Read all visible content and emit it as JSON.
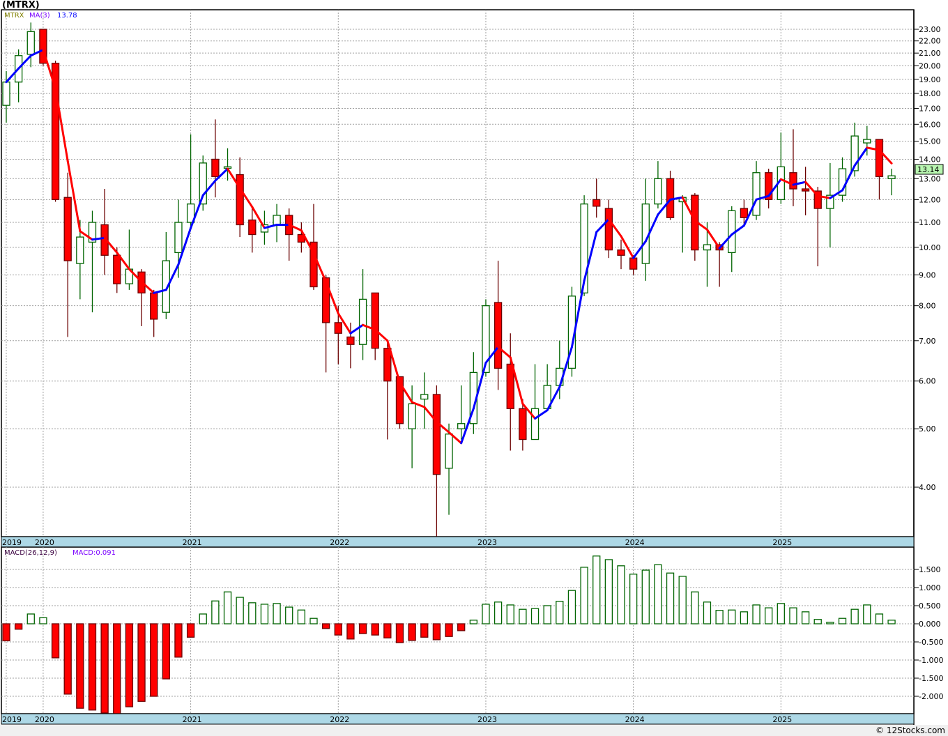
{
  "title": "(MTRX)",
  "price_legend": {
    "symbol": "MTRX",
    "ma_label": "MA(3)",
    "ma_value": "13.78"
  },
  "macd_legend": {
    "label": "MACD(26,12,9)",
    "value": "MACD:0.091"
  },
  "last_price_label": "13.14",
  "footer": "© 12Stocks.com",
  "colors": {
    "bull": "#006400",
    "bear_fill": "#ff0000",
    "bear_edge": "#6b0000",
    "ma_up": "#0000ff",
    "ma_down": "#ff0000",
    "axis_band": "#add8e6",
    "price_box": "#b8f5b0"
  },
  "chart_data": [
    {
      "type": "candlestick",
      "title": "MTRX monthly",
      "scale": "log",
      "ylim": [
        3.3,
        24
      ],
      "y_ticks": [
        "23.00",
        "22.00",
        "21.00",
        "20.00",
        "19.00",
        "18.00",
        "17.00",
        "16.00",
        "15.00",
        "14.00",
        "13.00",
        "12.00",
        "11.00",
        "10.00",
        "9.00",
        "8.00",
        "7.00",
        "6.00",
        "5.00",
        "4.00"
      ],
      "x_tick_labels": [
        {
          "label": "2019",
          "index": 0
        },
        {
          "label": "2020",
          "index": 3
        },
        {
          "label": "2021",
          "index": 15
        },
        {
          "label": "2022",
          "index": 27
        },
        {
          "label": "2023",
          "index": 39
        },
        {
          "label": "2024",
          "index": 51
        },
        {
          "label": "2025",
          "index": 63
        }
      ],
      "ma_period": 3,
      "ohlc": [
        [
          17.2,
          19.6,
          16.1,
          18.8
        ],
        [
          18.8,
          21.3,
          17.4,
          20.8
        ],
        [
          20.9,
          23.6,
          19.9,
          22.8
        ],
        [
          23.0,
          23.0,
          20.0,
          20.2
        ],
        [
          20.2,
          20.4,
          11.9,
          12.0
        ],
        [
          12.1,
          13.3,
          7.1,
          9.5
        ],
        [
          9.4,
          11.1,
          8.2,
          10.4
        ],
        [
          10.2,
          11.5,
          7.8,
          11.0
        ],
        [
          10.9,
          12.5,
          9.0,
          9.7
        ],
        [
          9.7,
          10.0,
          8.4,
          8.7
        ],
        [
          8.7,
          10.7,
          8.5,
          9.2
        ],
        [
          9.1,
          9.2,
          7.4,
          8.4
        ],
        [
          8.4,
          8.5,
          7.1,
          7.6
        ],
        [
          7.8,
          10.6,
          7.6,
          9.5
        ],
        [
          9.8,
          12.0,
          8.9,
          11.0
        ],
        [
          11.0,
          15.4,
          10.7,
          11.8
        ],
        [
          11.8,
          14.2,
          11.5,
          13.8
        ],
        [
          14.0,
          16.3,
          12.1,
          13.1
        ],
        [
          13.6,
          14.6,
          12.9,
          13.6
        ],
        [
          13.2,
          14.1,
          10.4,
          10.9
        ],
        [
          11.1,
          11.7,
          9.8,
          10.5
        ],
        [
          10.6,
          11.5,
          10.1,
          10.9
        ],
        [
          10.9,
          11.8,
          10.2,
          11.3
        ],
        [
          11.3,
          11.6,
          9.5,
          10.5
        ],
        [
          10.5,
          11.0,
          9.8,
          10.2
        ],
        [
          10.2,
          11.8,
          8.5,
          8.6
        ],
        [
          8.9,
          9.0,
          6.2,
          7.5
        ],
        [
          7.5,
          8.0,
          6.4,
          7.2
        ],
        [
          7.1,
          7.5,
          6.3,
          6.9
        ],
        [
          6.9,
          9.2,
          6.5,
          8.2
        ],
        [
          8.4,
          8.4,
          6.5,
          6.8
        ],
        [
          6.8,
          7.0,
          4.8,
          6.0
        ],
        [
          6.1,
          6.1,
          5.0,
          5.1
        ],
        [
          5.0,
          5.9,
          4.3,
          5.5
        ],
        [
          5.6,
          6.2,
          5.0,
          5.7
        ],
        [
          5.7,
          5.9,
          3.3,
          4.2
        ],
        [
          4.3,
          5.1,
          3.6,
          4.9
        ],
        [
          5.0,
          5.9,
          4.8,
          5.1
        ],
        [
          5.1,
          6.7,
          4.9,
          6.2
        ],
        [
          6.2,
          8.2,
          6.1,
          8.0
        ],
        [
          8.1,
          9.5,
          5.8,
          6.3
        ],
        [
          6.4,
          7.2,
          4.6,
          5.4
        ],
        [
          5.4,
          5.6,
          4.6,
          4.8
        ],
        [
          4.8,
          6.4,
          4.8,
          5.4
        ],
        [
          5.4,
          6.4,
          5.4,
          5.9
        ],
        [
          5.9,
          7.0,
          5.6,
          6.3
        ],
        [
          6.3,
          8.6,
          6.1,
          8.3
        ],
        [
          8.4,
          12.2,
          8.3,
          11.8
        ],
        [
          12.0,
          13.0,
          11.2,
          11.7
        ],
        [
          11.6,
          12.0,
          9.6,
          9.9
        ],
        [
          9.9,
          10.3,
          9.2,
          9.7
        ],
        [
          9.6,
          9.7,
          9.0,
          9.2
        ],
        [
          9.4,
          13.0,
          8.8,
          11.8
        ],
        [
          11.8,
          13.9,
          11.6,
          13.0
        ],
        [
          13.0,
          13.4,
          11.1,
          11.2
        ],
        [
          11.9,
          12.2,
          9.8,
          12.1
        ],
        [
          12.2,
          12.3,
          9.5,
          9.9
        ],
        [
          9.9,
          11.0,
          8.6,
          10.1
        ],
        [
          10.1,
          10.2,
          8.6,
          9.9
        ],
        [
          9.8,
          11.7,
          9.1,
          11.5
        ],
        [
          11.6,
          12.0,
          10.9,
          11.2
        ],
        [
          11.3,
          13.9,
          11.1,
          13.3
        ],
        [
          13.3,
          13.5,
          11.6,
          12.0
        ],
        [
          12.0,
          15.5,
          11.8,
          13.6
        ],
        [
          13.3,
          15.7,
          11.7,
          12.5
        ],
        [
          12.5,
          13.6,
          11.3,
          12.4
        ],
        [
          12.4,
          12.6,
          9.3,
          11.6
        ],
        [
          11.6,
          13.8,
          10.0,
          12.2
        ],
        [
          12.2,
          14.1,
          11.9,
          13.5
        ],
        [
          13.4,
          16.1,
          13.1,
          15.3
        ],
        [
          14.9,
          15.9,
          14.2,
          15.1
        ],
        [
          15.1,
          15.1,
          12.0,
          13.1
        ],
        [
          13.0,
          13.5,
          12.2,
          13.14
        ]
      ]
    },
    {
      "type": "bar",
      "title": "MACD(26,12,9) histogram",
      "ylim": [
        -2.5,
        1.9
      ],
      "y_ticks": [
        "1.500",
        "1.000",
        "0.500",
        "0.000",
        "-0.500",
        "-1.000",
        "-1.500",
        "-2.000"
      ],
      "values": [
        -0.47,
        -0.15,
        0.27,
        0.17,
        -0.94,
        -1.94,
        -2.33,
        -2.38,
        -2.46,
        -2.5,
        -2.29,
        -2.14,
        -2.0,
        -1.52,
        -0.92,
        -0.37,
        0.27,
        0.63,
        0.88,
        0.73,
        0.58,
        0.54,
        0.56,
        0.46,
        0.38,
        0.15,
        -0.13,
        -0.31,
        -0.42,
        -0.27,
        -0.31,
        -0.39,
        -0.52,
        -0.46,
        -0.37,
        -0.44,
        -0.35,
        -0.19,
        0.1,
        0.54,
        0.6,
        0.52,
        0.4,
        0.42,
        0.5,
        0.62,
        0.92,
        1.56,
        1.87,
        1.77,
        1.6,
        1.37,
        1.48,
        1.63,
        1.4,
        1.31,
        0.88,
        0.6,
        0.37,
        0.38,
        0.33,
        0.52,
        0.44,
        0.56,
        0.44,
        0.33,
        0.12,
        0.04,
        0.15,
        0.4,
        0.52,
        0.27,
        0.1
      ]
    }
  ]
}
